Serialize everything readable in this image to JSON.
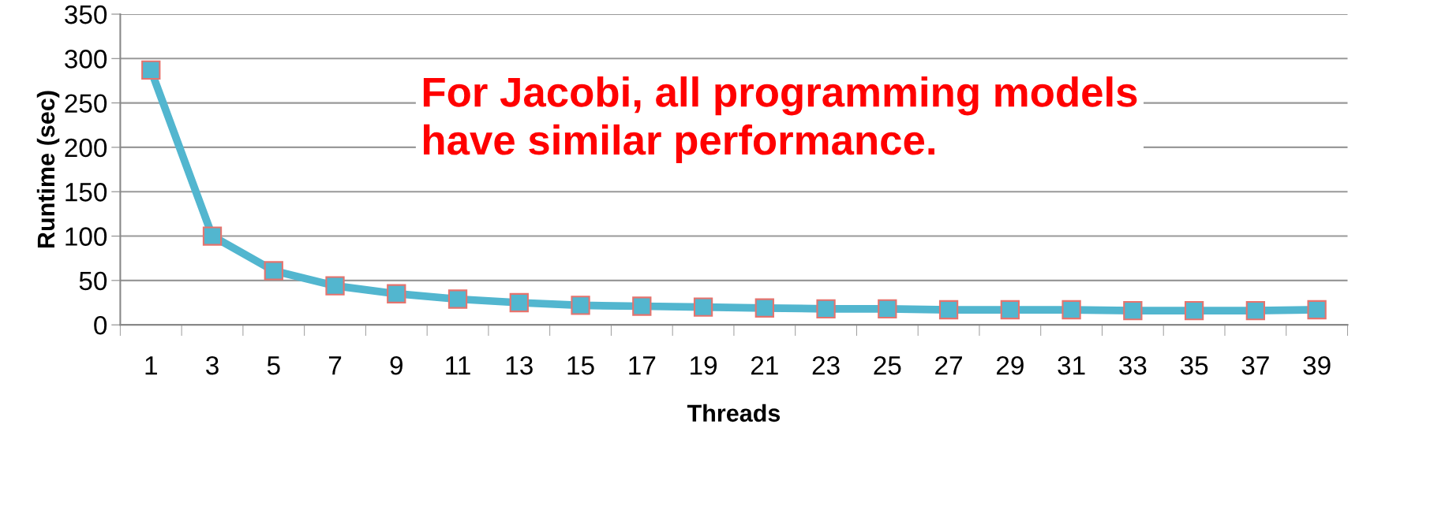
{
  "chart_data": {
    "type": "line",
    "xlabel": "Threads",
    "ylabel": "Runtime (sec)",
    "categories": [
      "1",
      "3",
      "5",
      "7",
      "9",
      "11",
      "13",
      "15",
      "17",
      "19",
      "21",
      "23",
      "25",
      "27",
      "29",
      "31",
      "33",
      "35",
      "37",
      "39"
    ],
    "series": [
      {
        "color": "#52b6cf",
        "values": [
          287,
          100,
          61,
          44,
          35,
          29,
          25,
          22,
          21,
          20,
          19,
          18,
          18,
          17,
          17,
          17,
          16,
          16,
          16,
          17
        ]
      }
    ],
    "marker": "square",
    "ylim": [
      0,
      350
    ],
    "yticks": [
      0,
      50,
      100,
      150,
      200,
      250,
      300,
      350
    ],
    "grid": "y",
    "line_style": "solid",
    "annotations": [
      "For Jacobi, all programming models\nhave similar performance."
    ]
  }
}
